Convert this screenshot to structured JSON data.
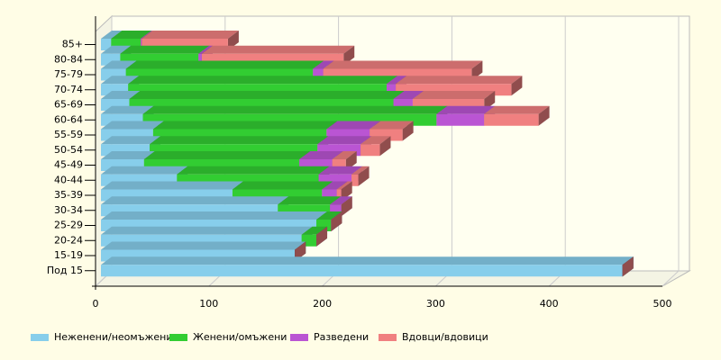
{
  "chart_data": {
    "type": "bar3d_stacked_horizontal",
    "categories": [
      "85+",
      "80-84",
      "75-79",
      "70-74",
      "65-69",
      "60-64",
      "55-59",
      "50-54",
      "45-49",
      "40-44",
      "35-39",
      "30-34",
      "25-29",
      "20-24",
      "15-19",
      "Под 15"
    ],
    "series": [
      {
        "name": "Неженени/неомъжени",
        "color": "#87ceeb",
        "values": [
          9,
          17,
          22,
          24,
          25,
          37,
          46,
          43,
          38,
          67,
          116,
          156,
          190,
          177,
          171,
          460
        ]
      },
      {
        "name": "Женени/омъжени",
        "color": "#32cd32",
        "values": [
          26,
          69,
          165,
          228,
          233,
          259,
          153,
          148,
          137,
          125,
          79,
          46,
          13,
          13,
          0,
          0
        ]
      },
      {
        "name": "Разведени",
        "color": "#ba55d3",
        "values": [
          1,
          3,
          9,
          8,
          17,
          42,
          38,
          38,
          29,
          29,
          13,
          10,
          0,
          0,
          0,
          0
        ]
      },
      {
        "name": "Вдовци/вдовици",
        "color": "#f08080",
        "values": [
          76,
          125,
          131,
          102,
          63,
          48,
          29,
          17,
          12,
          6,
          4,
          0,
          0,
          0,
          0,
          0
        ]
      }
    ],
    "xlim": [
      0,
      500
    ],
    "xticks": [
      0,
      100,
      200,
      300,
      400,
      500
    ],
    "grid": true,
    "legend": "bottom"
  }
}
